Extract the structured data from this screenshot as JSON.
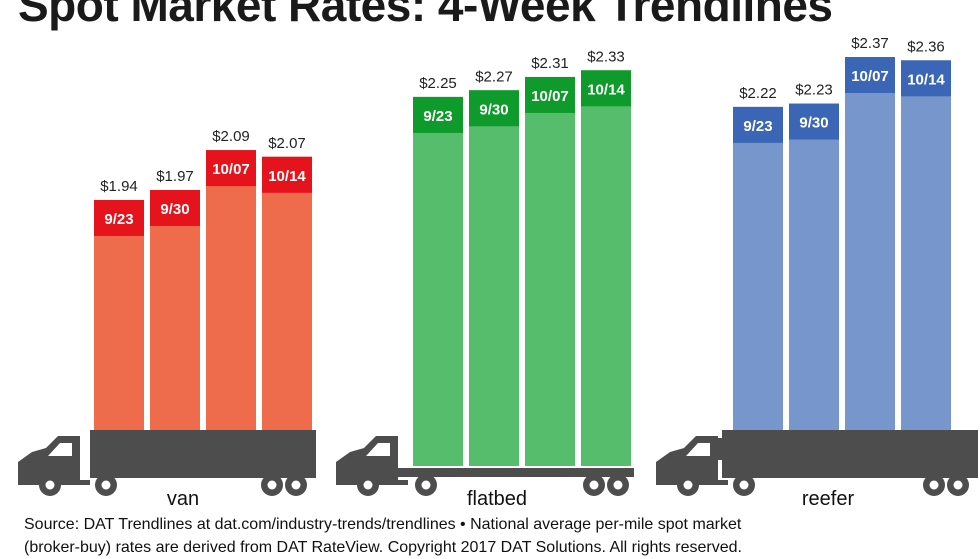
{
  "title": "Spot Market Rates: 4-Week Trendlines",
  "footnote": {
    "source": "Source: DAT Trendlines at dat.com/industry-trends/trendlines • National average per-mile spot market",
    "copyright": "(broker-buy) rates are derived from DAT RateView. Copyright 2017 DAT Solutions. All rights reserved."
  },
  "colors": {
    "truck": "#4d4d4d",
    "axis_line": "#d9d9d9"
  },
  "chart_data": [
    {
      "type": "bar",
      "xlabel": "van",
      "categories": [
        "9/23",
        "9/30",
        "10/07",
        "10/14"
      ],
      "values": [
        1.94,
        1.97,
        2.09,
        2.07
      ],
      "value_labels": [
        "$1.94",
        "$1.97",
        "$2.09",
        "$2.07"
      ],
      "bar_color": "#ee6b4c",
      "label_color": "#e4131c",
      "icon": "truck-trailer-icon"
    },
    {
      "type": "bar",
      "xlabel": "flatbed",
      "categories": [
        "9/23",
        "9/30",
        "10/07",
        "10/14"
      ],
      "values": [
        2.25,
        2.27,
        2.31,
        2.33
      ],
      "value_labels": [
        "$2.25",
        "$2.27",
        "$2.31",
        "$2.33"
      ],
      "bar_color": "#56bd6c",
      "label_color": "#0f9a2c",
      "icon": "flatbed-truck-icon"
    },
    {
      "type": "bar",
      "xlabel": "reefer",
      "categories": [
        "9/23",
        "9/30",
        "10/07",
        "10/14"
      ],
      "values": [
        2.22,
        2.23,
        2.37,
        2.36
      ],
      "value_labels": [
        "$2.22",
        "$2.23",
        "$2.37",
        "$2.36"
      ],
      "bar_color": "#7796cc",
      "label_color": "#3b66b5",
      "icon": "refrigerated-truck-icon"
    }
  ]
}
